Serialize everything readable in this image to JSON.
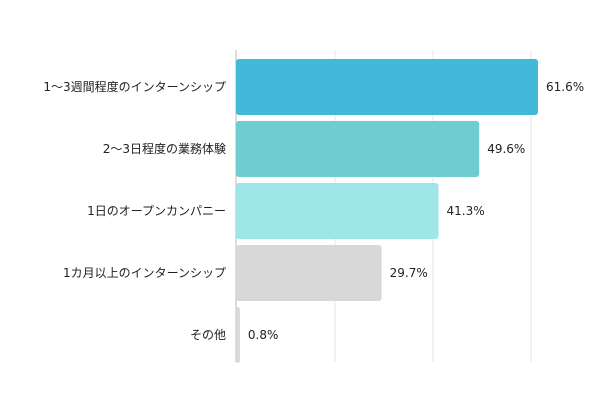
{
  "chart_data": {
    "type": "bar",
    "orientation": "horizontal",
    "categories": [
      "1〜3週間程度のインターンシップ",
      "2〜3日程度の業務体験",
      "1日のオープンカンパニー",
      "1カ月以上のインターンシップ",
      "その他"
    ],
    "values": [
      61.6,
      49.6,
      41.3,
      29.7,
      0.8
    ],
    "value_labels": [
      "61.6%",
      "49.6%",
      "41.3%",
      "29.7%",
      "0.8%"
    ],
    "unit": "%",
    "xlim": [
      0,
      62
    ],
    "grid": true,
    "legend": "none",
    "title": "",
    "xlabel": "",
    "ylabel": "",
    "bar_colors": [
      "#42b9d8",
      "#6ecdce",
      "#9ee6e8",
      "#d8d8d8",
      "#d8d8d8"
    ]
  }
}
